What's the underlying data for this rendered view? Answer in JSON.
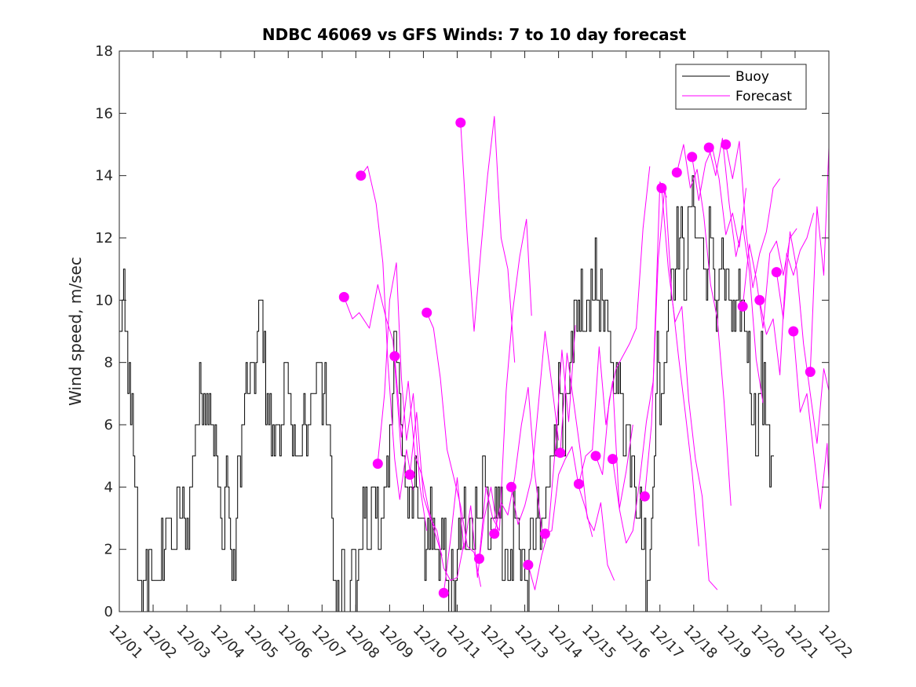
{
  "chart_data": {
    "type": "line",
    "title": "NDBC 46069 vs GFS Winds: 7 to 10 day forecast",
    "xlabel": "",
    "ylabel": "Wind speed, m/sec",
    "xlim": [
      0,
      21
    ],
    "ylim": [
      0,
      18
    ],
    "x_tick_labels": [
      "12/01",
      "12/02",
      "12/03",
      "12/04",
      "12/05",
      "12/06",
      "12/07",
      "12/08",
      "12/09",
      "12/10",
      "12/11",
      "12/12",
      "12/13",
      "12/14",
      "12/15",
      "12/16",
      "12/17",
      "12/18",
      "12/19",
      "12/20",
      "12/21",
      "12/22"
    ],
    "y_ticks": [
      0,
      2,
      4,
      6,
      8,
      10,
      12,
      14,
      16,
      18
    ],
    "legend": {
      "position": "top-right",
      "entries": [
        {
          "label": "Buoy",
          "color": "#000000"
        },
        {
          "label": "Forecast",
          "color": "#ff00ff"
        }
      ]
    },
    "colors": {
      "buoy": "#000000",
      "forecast": "#ff00ff",
      "axes": "#262626"
    },
    "buoy": {
      "name": "Buoy",
      "anchors": [
        [
          0.0,
          9
        ],
        [
          0.1,
          10
        ],
        [
          0.25,
          8
        ],
        [
          0.35,
          6
        ],
        [
          0.5,
          3
        ],
        [
          0.6,
          1
        ],
        [
          0.75,
          0
        ],
        [
          0.9,
          2
        ],
        [
          1.0,
          1
        ],
        [
          1.1,
          0
        ],
        [
          1.25,
          2
        ],
        [
          1.4,
          3
        ],
        [
          1.6,
          2
        ],
        [
          1.8,
          3
        ],
        [
          2.0,
          3
        ],
        [
          2.2,
          5
        ],
        [
          2.4,
          7
        ],
        [
          2.6,
          7
        ],
        [
          2.8,
          6
        ],
        [
          2.95,
          3
        ],
        [
          3.05,
          2
        ],
        [
          3.15,
          5
        ],
        [
          3.25,
          3
        ],
        [
          3.35,
          1
        ],
        [
          3.5,
          4
        ],
        [
          3.7,
          7
        ],
        [
          3.85,
          7
        ],
        [
          4.0,
          8
        ],
        [
          4.2,
          10
        ],
        [
          4.4,
          6
        ],
        [
          4.55,
          5
        ],
        [
          4.75,
          6
        ],
        [
          4.95,
          7
        ],
        [
          5.1,
          6
        ],
        [
          5.3,
          5
        ],
        [
          5.5,
          6
        ],
        [
          5.7,
          7
        ],
        [
          5.9,
          8
        ],
        [
          6.1,
          7
        ],
        [
          6.25,
          4
        ],
        [
          6.35,
          1
        ],
        [
          6.5,
          0
        ],
        [
          6.6,
          2
        ],
        [
          6.75,
          0
        ],
        [
          6.9,
          2
        ],
        [
          7.05,
          1
        ],
        [
          7.2,
          3
        ],
        [
          7.4,
          2
        ],
        [
          7.5,
          4
        ],
        [
          7.7,
          2
        ],
        [
          7.85,
          4
        ],
        [
          8.0,
          6
        ],
        [
          8.15,
          9
        ],
        [
          8.3,
          7
        ],
        [
          8.45,
          4
        ],
        [
          8.6,
          3
        ],
        [
          8.8,
          4
        ],
        [
          9.0,
          2
        ],
        [
          9.2,
          3
        ],
        [
          9.4,
          1
        ],
        [
          9.6,
          2
        ],
        [
          9.75,
          0
        ],
        [
          9.9,
          1
        ],
        [
          10.05,
          2
        ],
        [
          10.2,
          3
        ],
        [
          10.4,
          2
        ],
        [
          10.6,
          3
        ],
        [
          10.8,
          4
        ],
        [
          11.0,
          3
        ],
        [
          11.2,
          4
        ],
        [
          11.35,
          2
        ],
        [
          11.5,
          1
        ],
        [
          11.7,
          3
        ],
        [
          11.9,
          2
        ],
        [
          12.05,
          1
        ],
        [
          12.2,
          2
        ],
        [
          12.35,
          3
        ],
        [
          12.5,
          2
        ],
        [
          12.65,
          4
        ],
        [
          12.8,
          5
        ],
        [
          13.0,
          7
        ],
        [
          13.2,
          6
        ],
        [
          13.4,
          8
        ],
        [
          13.6,
          10
        ],
        [
          13.8,
          9
        ],
        [
          14.0,
          11
        ],
        [
          14.2,
          10
        ],
        [
          14.4,
          9
        ],
        [
          14.6,
          8
        ],
        [
          14.8,
          7
        ],
        [
          15.0,
          6
        ],
        [
          15.2,
          5
        ],
        [
          15.4,
          3
        ],
        [
          15.55,
          2
        ],
        [
          15.65,
          0
        ],
        [
          15.75,
          4
        ],
        [
          15.9,
          8
        ],
        [
          16.05,
          7
        ],
        [
          16.2,
          9
        ],
        [
          16.35,
          11
        ],
        [
          16.55,
          12
        ],
        [
          16.75,
          11
        ],
        [
          16.95,
          13
        ],
        [
          17.15,
          12
        ],
        [
          17.35,
          11
        ],
        [
          17.5,
          12
        ],
        [
          17.65,
          10
        ],
        [
          17.8,
          11
        ],
        [
          18.0,
          10
        ],
        [
          18.2,
          9
        ],
        [
          18.4,
          10
        ],
        [
          18.55,
          9
        ],
        [
          18.7,
          7
        ],
        [
          18.85,
          6
        ],
        [
          19.0,
          8
        ],
        [
          19.15,
          6
        ],
        [
          19.3,
          5
        ],
        [
          19.4,
          5
        ]
      ],
      "extent_x": [
        0,
        19.4
      ]
    },
    "forecast_series": [
      {
        "x": [
          6.65,
          6.9,
          7.1,
          7.4,
          7.65,
          7.9,
          8.1,
          8.35
        ],
        "y": [
          10.1,
          9.4,
          9.6,
          9.1,
          10.5,
          9.4,
          8.7,
          5.0
        ]
      },
      {
        "x": [
          7.15,
          7.35,
          7.6,
          7.8,
          7.95,
          8.15,
          8.3,
          8.5,
          8.7
        ],
        "y": [
          14.0,
          14.3,
          13.1,
          11.2,
          8.0,
          4.9,
          3.6,
          5.2,
          3.9
        ]
      },
      {
        "x": [
          7.65,
          7.85,
          8.0,
          8.2,
          8.35,
          8.5,
          8.7,
          8.9,
          9.1
        ],
        "y": [
          4.8,
          7.0,
          10.0,
          11.2,
          7.5,
          5.5,
          7.0,
          4.0,
          2.6
        ]
      },
      {
        "x": [
          8.15,
          8.35,
          8.55,
          8.75,
          8.95,
          9.15,
          9.35,
          9.55
        ],
        "y": [
          8.2,
          5.6,
          7.4,
          5.0,
          4.4,
          3.3,
          2.5,
          1.8
        ]
      },
      {
        "x": [
          8.6,
          8.8,
          9.0,
          9.2,
          9.4,
          9.6,
          9.8,
          10.0,
          10.2
        ],
        "y": [
          4.4,
          6.4,
          3.7,
          3.0,
          2.6,
          1.4,
          1.0,
          1.1,
          2.2
        ]
      },
      {
        "x": [
          9.1,
          9.3,
          9.5,
          9.7,
          9.9,
          10.1,
          10.3,
          10.5,
          10.7
        ],
        "y": [
          9.6,
          9.1,
          7.5,
          5.2,
          4.3,
          3.4,
          2.1,
          1.9,
          0.8
        ]
      },
      {
        "x": [
          9.6,
          9.8,
          10.0,
          10.2,
          10.4,
          10.6,
          10.8,
          11.0,
          11.2
        ],
        "y": [
          0.6,
          2.3,
          4.3,
          2.0,
          3.4,
          1.1,
          3.0,
          4.0,
          2.6
        ]
      },
      {
        "x": [
          10.1,
          10.3,
          10.5,
          10.7,
          10.9,
          11.1,
          11.3,
          11.5,
          11.7
        ],
        "y": [
          15.7,
          12.0,
          9.0,
          11.6,
          14.0,
          15.9,
          12.0,
          11.0,
          8.0
        ]
      },
      {
        "x": [
          10.65,
          10.85,
          11.05,
          11.25,
          11.45,
          11.65,
          11.85,
          12.05,
          12.2
        ],
        "y": [
          1.7,
          4.0,
          3.0,
          2.6,
          7.1,
          9.7,
          11.4,
          12.6,
          9.5
        ]
      },
      {
        "x": [
          11.1,
          11.3,
          11.5,
          11.7,
          11.9,
          12.1,
          12.3,
          12.55
        ],
        "y": [
          2.5,
          3.5,
          3.1,
          4.3,
          6.0,
          7.2,
          4.4,
          2.2
        ]
      },
      {
        "x": [
          11.6,
          11.8,
          12.0,
          12.2,
          12.4,
          12.6,
          12.8,
          13.0
        ],
        "y": [
          4.0,
          2.8,
          3.4,
          4.3,
          6.6,
          9.0,
          7.3,
          5.5
        ]
      },
      {
        "x": [
          12.1,
          12.3,
          12.5,
          12.7,
          12.9,
          13.1,
          13.3,
          13.5
        ],
        "y": [
          1.5,
          0.7,
          1.8,
          2.6,
          5.2,
          8.4,
          6.1,
          9.2
        ]
      },
      {
        "x": [
          12.6,
          12.8,
          13.0,
          13.2,
          13.4,
          13.6,
          13.8,
          14.0
        ],
        "y": [
          2.5,
          2.6,
          4.4,
          4.9,
          5.3,
          4.0,
          3.3,
          2.4
        ]
      },
      {
        "x": [
          13.05,
          13.25,
          13.45,
          13.65,
          13.85,
          14.05,
          14.25,
          14.45,
          14.65
        ],
        "y": [
          5.1,
          8.3,
          6.7,
          5.1,
          3.0,
          2.6,
          3.5,
          1.5,
          1.0
        ]
      },
      {
        "x": [
          13.6,
          13.8,
          14.0,
          14.2,
          14.4,
          14.6,
          14.8,
          15.0,
          15.2
        ],
        "y": [
          4.1,
          5.0,
          5.2,
          8.5,
          6.0,
          7.4,
          3.3,
          4.5,
          6.0
        ]
      },
      {
        "x": [
          14.1,
          14.3,
          14.5,
          14.7,
          14.9,
          15.1,
          15.3,
          15.5,
          15.7
        ],
        "y": [
          5.0,
          4.4,
          6.8,
          7.8,
          8.2,
          8.6,
          9.1,
          12.3,
          14.3
        ]
      },
      {
        "x": [
          14.6,
          14.8,
          15.0,
          15.2,
          15.4,
          15.6,
          15.8,
          16.0,
          16.2
        ],
        "y": [
          4.9,
          3.3,
          2.2,
          2.6,
          4.2,
          6.1,
          7.4,
          13.8,
          13.3
        ]
      },
      {
        "x": [
          15.55,
          15.75,
          15.95,
          16.15,
          16.35,
          16.55,
          16.75,
          16.95,
          17.15
        ],
        "y": [
          3.7,
          6.0,
          11.3,
          13.7,
          10.2,
          8.2,
          6.4,
          4.5,
          2.1
        ]
      },
      {
        "x": [
          16.05,
          16.25,
          16.45,
          16.65,
          16.85,
          17.05,
          17.25,
          17.45,
          17.7
        ],
        "y": [
          13.6,
          11.0,
          9.3,
          9.8,
          6.8,
          4.9,
          3.7,
          1.0,
          0.7
        ]
      },
      {
        "x": [
          16.5,
          16.7,
          16.9,
          17.1,
          17.3,
          17.5,
          17.7,
          17.9,
          18.1
        ],
        "y": [
          14.1,
          15.0,
          13.6,
          14.2,
          12.7,
          10.5,
          9.4,
          6.7,
          3.4
        ]
      },
      {
        "x": [
          16.95,
          17.15,
          17.35,
          17.55,
          17.75,
          17.95,
          18.15,
          18.35,
          18.55
        ],
        "y": [
          14.6,
          13.2,
          14.4,
          14.9,
          13.9,
          12.1,
          12.8,
          11.7,
          13.6
        ]
      },
      {
        "x": [
          17.45,
          17.65,
          17.85,
          18.05,
          18.25,
          18.45,
          18.65,
          18.85,
          19.05
        ],
        "y": [
          14.9,
          14.0,
          15.2,
          13.1,
          11.4,
          12.4,
          10.9,
          8.1,
          6.7
        ]
      },
      {
        "x": [
          17.95,
          18.15,
          18.35,
          18.55,
          18.75,
          18.95,
          19.15,
          19.35,
          19.55
        ],
        "y": [
          15.0,
          13.9,
          15.1,
          12.2,
          10.4,
          11.5,
          12.2,
          13.6,
          13.9
        ]
      },
      {
        "x": [
          18.45,
          18.65,
          18.85,
          19.05,
          19.25,
          19.45,
          19.65,
          19.85,
          20.05
        ],
        "y": [
          9.8,
          11.8,
          10.7,
          9.1,
          11.5,
          11.9,
          10.8,
          12.0,
          12.3
        ]
      },
      {
        "x": [
          18.95,
          19.15,
          19.35,
          19.55,
          19.75,
          19.95,
          20.15,
          20.35,
          20.55
        ],
        "y": [
          10.0,
          8.9,
          9.4,
          7.6,
          11.5,
          10.8,
          11.6,
          12.0,
          12.8
        ]
      },
      {
        "x": [
          19.45,
          19.65,
          19.85,
          20.05,
          20.25,
          20.45,
          20.65,
          20.85,
          21.0
        ],
        "y": [
          10.9,
          9.4,
          12.2,
          11.0,
          8.6,
          7.0,
          5.4,
          7.8,
          7.1
        ]
      },
      {
        "x": [
          19.95,
          20.15,
          20.35,
          20.55,
          20.75,
          20.95,
          21.0
        ],
        "y": [
          9.0,
          6.4,
          7.0,
          5.1,
          3.3,
          5.4,
          4.2
        ]
      },
      {
        "x": [
          20.45,
          20.65,
          20.85,
          21.0
        ],
        "y": [
          7.7,
          13.0,
          10.8,
          14.9
        ]
      }
    ],
    "forecast_markers": [
      {
        "x": 6.65,
        "y": 10.1
      },
      {
        "x": 7.15,
        "y": 14.0
      },
      {
        "x": 7.65,
        "y": 4.75
      },
      {
        "x": 8.15,
        "y": 8.2
      },
      {
        "x": 8.6,
        "y": 4.4
      },
      {
        "x": 9.1,
        "y": 9.6
      },
      {
        "x": 9.6,
        "y": 0.6
      },
      {
        "x": 10.1,
        "y": 15.7
      },
      {
        "x": 10.65,
        "y": 1.7
      },
      {
        "x": 11.1,
        "y": 2.5
      },
      {
        "x": 11.6,
        "y": 4.0
      },
      {
        "x": 12.1,
        "y": 1.5
      },
      {
        "x": 12.6,
        "y": 2.5
      },
      {
        "x": 13.05,
        "y": 5.1
      },
      {
        "x": 13.6,
        "y": 4.1
      },
      {
        "x": 14.1,
        "y": 5.0
      },
      {
        "x": 14.6,
        "y": 4.9
      },
      {
        "x": 15.55,
        "y": 3.7
      },
      {
        "x": 16.05,
        "y": 13.6
      },
      {
        "x": 16.5,
        "y": 14.1
      },
      {
        "x": 16.95,
        "y": 14.6
      },
      {
        "x": 17.45,
        "y": 14.9
      },
      {
        "x": 17.95,
        "y": 15.0
      },
      {
        "x": 18.45,
        "y": 9.8
      },
      {
        "x": 18.95,
        "y": 10.0
      },
      {
        "x": 19.45,
        "y": 10.9
      },
      {
        "x": 19.95,
        "y": 9.0
      },
      {
        "x": 20.45,
        "y": 7.7
      }
    ]
  }
}
